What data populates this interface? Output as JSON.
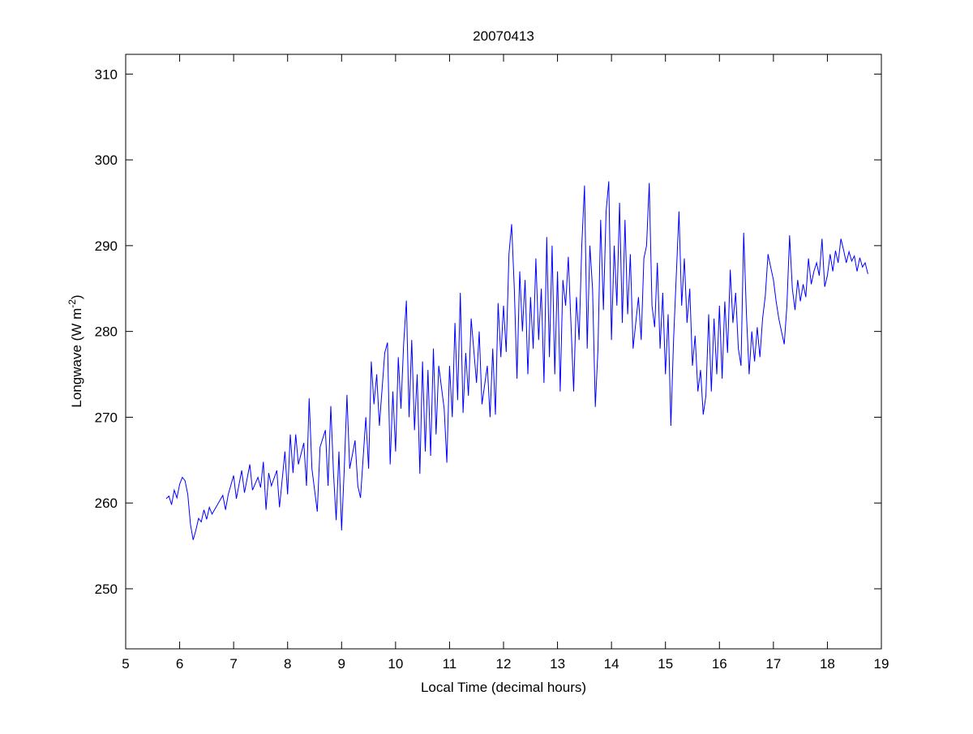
{
  "chart_data": {
    "type": "line",
    "title": "20070413",
    "xlabel": "Local Time (decimal hours)",
    "ylabel": {
      "main": "Longwave (W m",
      "sup": "-2",
      "close": ")"
    },
    "xlim": [
      5,
      19
    ],
    "ylim": [
      243,
      312.3
    ],
    "xticks": [
      5,
      6,
      7,
      8,
      9,
      10,
      11,
      12,
      13,
      14,
      15,
      16,
      17,
      18,
      19
    ],
    "yticks": [
      250,
      260,
      270,
      280,
      290,
      300,
      310
    ],
    "grid": false,
    "line_color": "#0000ff",
    "series": [
      {
        "name": "Longwave",
        "x": [
          5.75,
          5.8,
          5.85,
          5.9,
          5.95,
          6.0,
          6.05,
          6.1,
          6.15,
          6.2,
          6.25,
          6.3,
          6.35,
          6.4,
          6.45,
          6.5,
          6.55,
          6.6,
          6.7,
          6.8,
          6.85,
          6.9,
          7.0,
          7.05,
          7.15,
          7.2,
          7.3,
          7.35,
          7.45,
          7.5,
          7.55,
          7.6,
          7.65,
          7.7,
          7.8,
          7.85,
          7.95,
          8.0,
          8.05,
          8.1,
          8.15,
          8.2,
          8.3,
          8.35,
          8.4,
          8.45,
          8.55,
          8.6,
          8.7,
          8.75,
          8.8,
          8.85,
          8.9,
          8.95,
          9.0,
          9.05,
          9.1,
          9.15,
          9.25,
          9.3,
          9.35,
          9.45,
          9.5,
          9.55,
          9.6,
          9.65,
          9.7,
          9.8,
          9.85,
          9.9,
          9.95,
          10.0,
          10.05,
          10.1,
          10.15,
          10.2,
          10.25,
          10.3,
          10.35,
          10.4,
          10.45,
          10.5,
          10.55,
          10.6,
          10.65,
          10.7,
          10.75,
          10.8,
          10.9,
          10.95,
          11.0,
          11.05,
          11.1,
          11.15,
          11.2,
          11.25,
          11.3,
          11.35,
          11.4,
          11.5,
          11.55,
          11.6,
          11.7,
          11.75,
          11.8,
          11.85,
          11.9,
          11.95,
          12.0,
          12.05,
          12.1,
          12.15,
          12.2,
          12.25,
          12.3,
          12.35,
          12.4,
          12.45,
          12.5,
          12.55,
          12.6,
          12.65,
          12.7,
          12.75,
          12.8,
          12.85,
          12.9,
          12.95,
          13.0,
          13.05,
          13.1,
          13.15,
          13.2,
          13.3,
          13.35,
          13.4,
          13.45,
          13.5,
          13.55,
          13.6,
          13.65,
          13.7,
          13.75,
          13.8,
          13.85,
          13.9,
          13.95,
          14.0,
          14.05,
          14.1,
          14.15,
          14.2,
          14.25,
          14.3,
          14.35,
          14.4,
          14.5,
          14.55,
          14.6,
          14.65,
          14.7,
          14.75,
          14.8,
          14.85,
          14.9,
          14.95,
          15.0,
          15.05,
          15.1,
          15.15,
          15.25,
          15.3,
          15.35,
          15.4,
          15.45,
          15.5,
          15.55,
          15.6,
          15.65,
          15.7,
          15.75,
          15.8,
          15.85,
          15.9,
          15.95,
          16.0,
          16.05,
          16.1,
          16.15,
          16.2,
          16.25,
          16.3,
          16.35,
          16.4,
          16.45,
          16.5,
          16.55,
          16.6,
          16.65,
          16.7,
          16.75,
          16.8,
          16.85,
          16.9,
          16.95,
          17.0,
          17.05,
          17.1,
          17.15,
          17.2,
          17.25,
          17.3,
          17.35,
          17.4,
          17.45,
          17.5,
          17.55,
          17.6,
          17.65,
          17.7,
          17.75,
          17.8,
          17.85,
          17.9,
          17.95,
          18.0,
          18.05,
          18.1,
          18.15,
          18.2,
          18.25,
          18.3,
          18.35,
          18.4,
          18.45,
          18.5,
          18.55,
          18.6,
          18.65,
          18.7,
          18.75
        ],
        "y": [
          260.5,
          260.8,
          259.8,
          261.5,
          260.6,
          262.2,
          263,
          262.6,
          261,
          257.5,
          255.7,
          256.8,
          258.2,
          257.8,
          259.2,
          258.1,
          259.5,
          258.7,
          259.8,
          260.9,
          259.2,
          261,
          263.2,
          260.5,
          263.8,
          261.2,
          264.5,
          261.5,
          263,
          261.8,
          264.8,
          259.2,
          263.5,
          262,
          263.8,
          259.5,
          266,
          261,
          268,
          263.5,
          268,
          264.5,
          267,
          262,
          272.2,
          264,
          259,
          266.5,
          268.5,
          262,
          271.3,
          263.5,
          258,
          266,
          256.8,
          264,
          272.6,
          264,
          267.3,
          262,
          260.6,
          270,
          264,
          276.5,
          271.5,
          275,
          269,
          277.5,
          278.7,
          264.5,
          273,
          266,
          277,
          271,
          278.5,
          283.6,
          270,
          279,
          268.5,
          275,
          263.4,
          276.5,
          266,
          275.5,
          265.5,
          278,
          268,
          276,
          271,
          264.7,
          276,
          270,
          281,
          272,
          284.5,
          270.5,
          277.5,
          272.5,
          281.5,
          274,
          280,
          271.5,
          276,
          270,
          278,
          270.3,
          283.3,
          277,
          283,
          277.6,
          289,
          292.5,
          285,
          274.5,
          287,
          280,
          286,
          275,
          284,
          278,
          288.5,
          279,
          285,
          274,
          291,
          277,
          290,
          275,
          287,
          273,
          286,
          283,
          288.7,
          273,
          284,
          279,
          290,
          297,
          278,
          290,
          285,
          271.2,
          278,
          293,
          282.5,
          294,
          297.5,
          279,
          290,
          283,
          295,
          281,
          293,
          282,
          289,
          278,
          284,
          279,
          288.5,
          290,
          297.3,
          283,
          280.5,
          288,
          278,
          284.5,
          275,
          282,
          269,
          279,
          294,
          283,
          288.5,
          281,
          285,
          276,
          279.5,
          273,
          275.5,
          270.3,
          272.5,
          282,
          273,
          281.5,
          275,
          283,
          274.5,
          283.5,
          277.5,
          287.2,
          281,
          284.5,
          278,
          276,
          291.5,
          282,
          275,
          280,
          276.5,
          280.5,
          277,
          281.5,
          284.2,
          289,
          287.5,
          286,
          283.5,
          281.5,
          280,
          278.5,
          283,
          291.2,
          285,
          282.5,
          286,
          283.5,
          285.5,
          284,
          288.5,
          285.5,
          287,
          288,
          286.5,
          290.8,
          285.2,
          286.5,
          289,
          287,
          289.4,
          288,
          290.8,
          289.5,
          288,
          289.3,
          288.2,
          288.8,
          287,
          288.6,
          287.5,
          288,
          286.7
        ]
      }
    ]
  }
}
